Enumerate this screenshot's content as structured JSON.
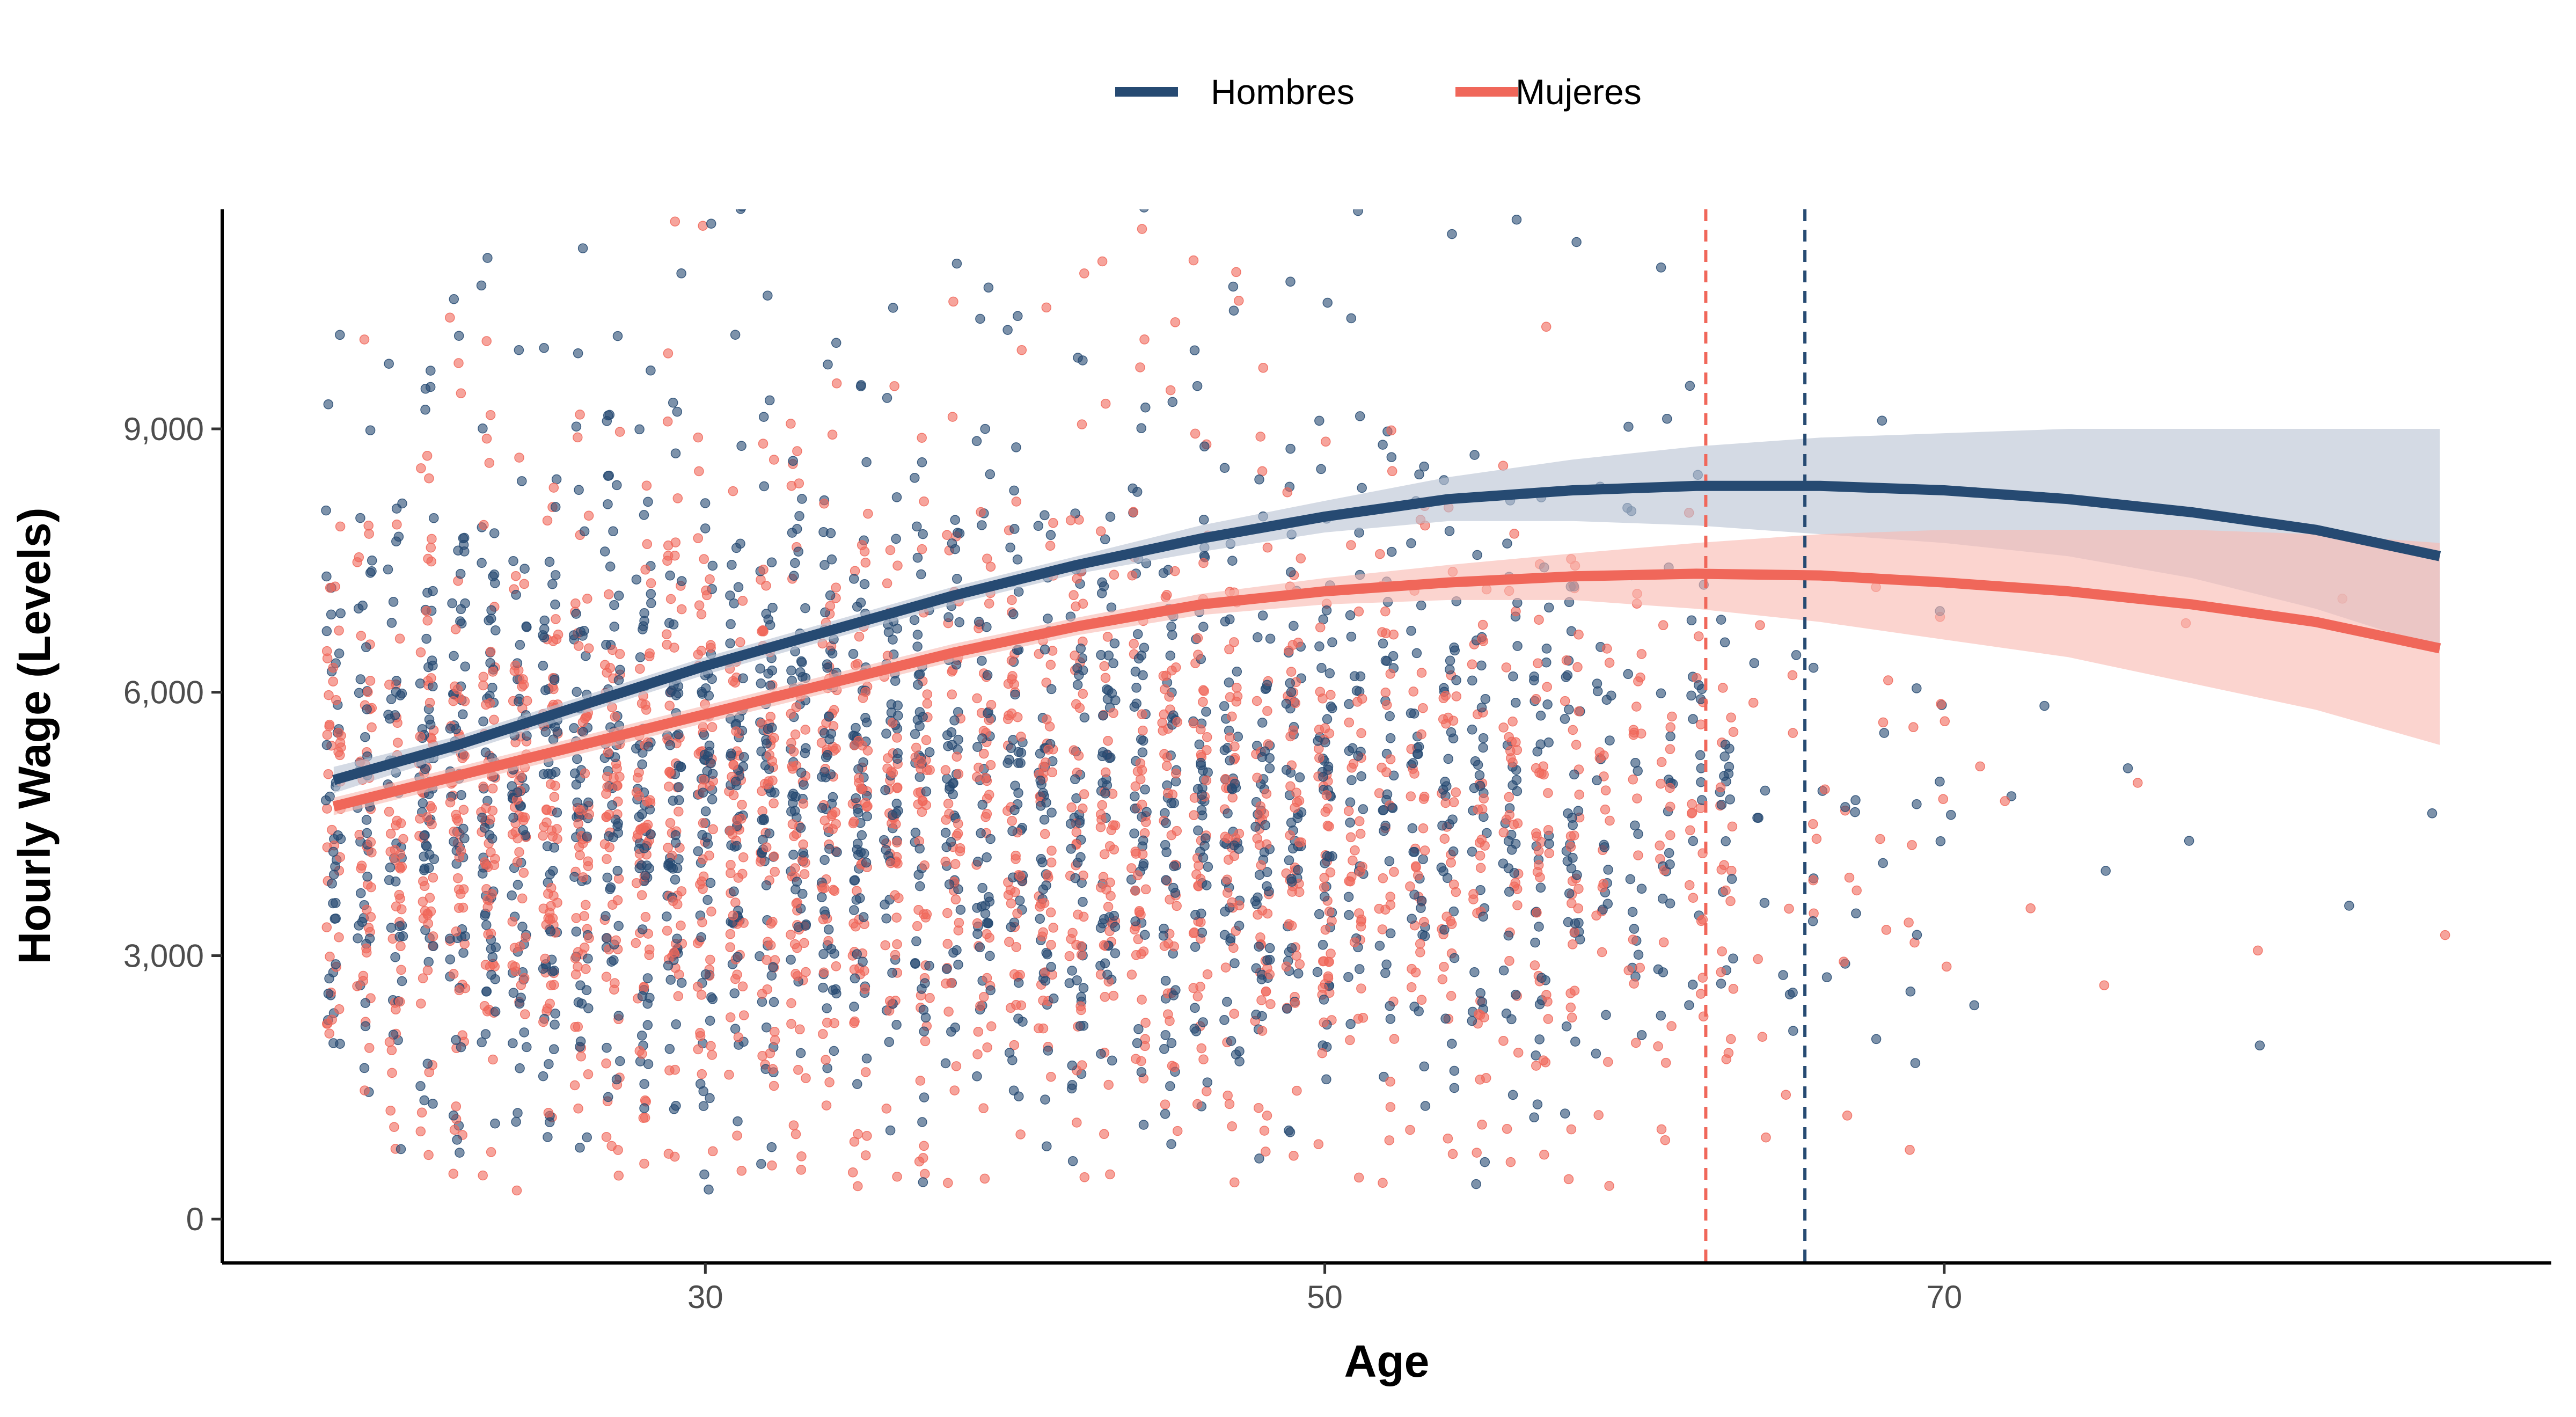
{
  "chart_data": {
    "type": "scatter",
    "title": "",
    "xlabel": "Age",
    "ylabel": "Hourly Wage (Levels)",
    "xlim": [
      14.4,
      89.6
    ],
    "ylim": [
      -500,
      11500
    ],
    "x_ticks": [
      30,
      50,
      70
    ],
    "y_ticks": [
      0,
      3000,
      6000,
      9000
    ],
    "y_tick_labels": [
      "0",
      "3,000",
      "6,000",
      "9,000"
    ],
    "grid": false,
    "legend_position": "top",
    "series": [
      {
        "name": "Hombres",
        "color": "#264a72",
        "fit": {
          "x": [
            18,
            22,
            26,
            30,
            34,
            38,
            42,
            46,
            50,
            54,
            58,
            62,
            66,
            70,
            74,
            78,
            82,
            86
          ],
          "y": [
            5000,
            5400,
            5850,
            6300,
            6700,
            7100,
            7450,
            7750,
            8000,
            8200,
            8300,
            8350,
            8350,
            8300,
            8200,
            8050,
            7850,
            7550
          ],
          "lower": [
            4850,
            5300,
            5750,
            6200,
            6600,
            7000,
            7350,
            7600,
            7820,
            7950,
            7950,
            7900,
            7800,
            7700,
            7550,
            7300,
            6950,
            6500
          ],
          "upper": [
            5150,
            5500,
            5950,
            6400,
            6800,
            7200,
            7550,
            7900,
            8180,
            8450,
            8650,
            8800,
            8900,
            8950,
            9000,
            9000,
            9000,
            9000
          ]
        },
        "reference_line_x": 65.5
      },
      {
        "name": "Mujeres",
        "color": "#f0675a",
        "fit": {
          "x": [
            18,
            22,
            26,
            30,
            34,
            38,
            42,
            46,
            50,
            54,
            58,
            62,
            66,
            70,
            74,
            78,
            82,
            86
          ],
          "y": [
            4700,
            5050,
            5400,
            5750,
            6100,
            6450,
            6750,
            7000,
            7150,
            7250,
            7320,
            7350,
            7330,
            7250,
            7150,
            7000,
            6800,
            6500
          ],
          "lower": [
            4600,
            4950,
            5300,
            5650,
            6000,
            6350,
            6650,
            6880,
            7000,
            7050,
            7050,
            6950,
            6800,
            6600,
            6400,
            6100,
            5800,
            5400
          ],
          "upper": [
            4800,
            5150,
            5500,
            5850,
            6200,
            6550,
            6850,
            7120,
            7300,
            7450,
            7580,
            7700,
            7800,
            7850,
            7850,
            7850,
            7800,
            7700
          ]
        },
        "reference_line_x": 62.3
      }
    ],
    "scatter_points": {
      "description_of_density": "dense jittered points at integer ages 18-64, sparse 65-86",
      "age_range": [
        18,
        86
      ]
    }
  }
}
